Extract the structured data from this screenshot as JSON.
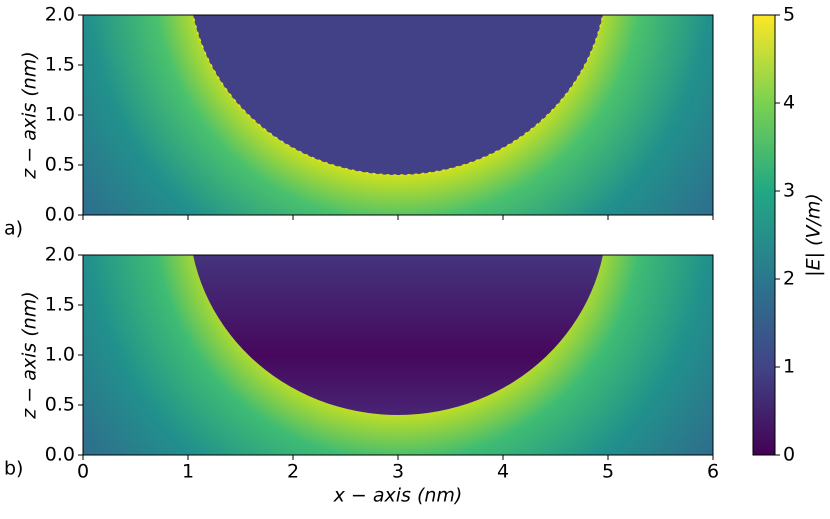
{
  "chart_data": [
    {
      "type": "heatmap",
      "panel_label": "a)",
      "ylabel": "z − axis (nm)",
      "xlim": [
        0,
        6
      ],
      "ylim": [
        0,
        2
      ],
      "yticks": [
        {
          "value": 0,
          "label": "0.0"
        },
        {
          "value": 0.5,
          "label": "0.5"
        },
        {
          "value": 1,
          "label": "1.0"
        },
        {
          "value": 1.5,
          "label": "1.5"
        },
        {
          "value": 2,
          "label": "2.0"
        }
      ]
    },
    {
      "type": "heatmap",
      "panel_label": "b)",
      "ylabel": "z − axis (nm)",
      "xlabel": "x − axis (nm)",
      "xlim": [
        0,
        6
      ],
      "ylim": [
        0,
        2
      ],
      "xticks": [
        0,
        1,
        2,
        3,
        4,
        5,
        6
      ],
      "yticks": [
        {
          "value": 0,
          "label": "0.0"
        },
        {
          "value": 0.5,
          "label": "0.5"
        },
        {
          "value": 1,
          "label": "1.0"
        },
        {
          "value": 1.5,
          "label": "1.5"
        },
        {
          "value": 2,
          "label": "2.0"
        }
      ]
    },
    {
      "type": "colorbar",
      "label": "|E|  (V/m)",
      "lim": [
        0,
        5
      ],
      "ticks": [
        0,
        1,
        2,
        3,
        4,
        5
      ],
      "colors": [
        "#440154",
        "#414487",
        "#2a788e",
        "#22a884",
        "#7ad151",
        "#fde725"
      ]
    }
  ]
}
